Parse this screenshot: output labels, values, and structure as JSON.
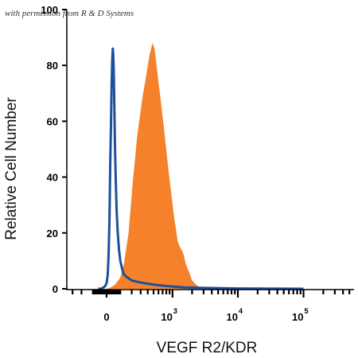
{
  "watermark": "with permission from R & D Systems",
  "chart_data": {
    "type": "area",
    "title": "",
    "xlabel": "VEGF R2/KDR",
    "ylabel": "Relative Cell Number",
    "x_scale": "biexponential",
    "ylim": [
      0,
      100
    ],
    "grid": false,
    "y_ticks": [
      "0",
      "20",
      "40",
      "60",
      "80",
      "100"
    ],
    "x_ticks": [
      {
        "base": "0",
        "exp": ""
      },
      {
        "base": "10",
        "exp": "3"
      },
      {
        "base": "10",
        "exp": "4"
      },
      {
        "base": "10",
        "exp": "5"
      }
    ],
    "series": [
      {
        "style": "filled",
        "color": "#f5822a",
        "x": [
          -20,
          0,
          30,
          60,
          100,
          130,
          170,
          210,
          260,
          320,
          380,
          430,
          480,
          520,
          560,
          600,
          640,
          680,
          730,
          780,
          840,
          900,
          970,
          1040,
          1120,
          1200,
          1300,
          1450,
          1600,
          1800,
          2000,
          2300,
          2600,
          3000
        ],
        "values": [
          0,
          0,
          0.5,
          1.5,
          4,
          9,
          20,
          38,
          55,
          68,
          77,
          84,
          88,
          86,
          80,
          74,
          69,
          64,
          58,
          52,
          45,
          39,
          33,
          27,
          22,
          17,
          15,
          13,
          9,
          6,
          3,
          1.5,
          0.5,
          0
        ]
      },
      {
        "style": "line",
        "color": "#1d4f9c",
        "x": [
          -60,
          -40,
          -20,
          -10,
          0,
          8,
          14,
          20,
          26,
          32,
          36,
          40,
          44,
          48,
          52,
          56,
          60,
          66,
          72,
          80,
          90,
          100,
          115,
          130,
          160,
          200,
          260,
          350,
          500,
          800,
          1500,
          3000,
          10000,
          100000
        ],
        "values": [
          0,
          0,
          0.5,
          1,
          2,
          5,
          12,
          25,
          45,
          62,
          74,
          82,
          86,
          83,
          75,
          62,
          50,
          38,
          28,
          20,
          14,
          10,
          7,
          5,
          4,
          3,
          2.5,
          2,
          1.5,
          1,
          0.5,
          0.3,
          0.1,
          0
        ]
      }
    ]
  }
}
